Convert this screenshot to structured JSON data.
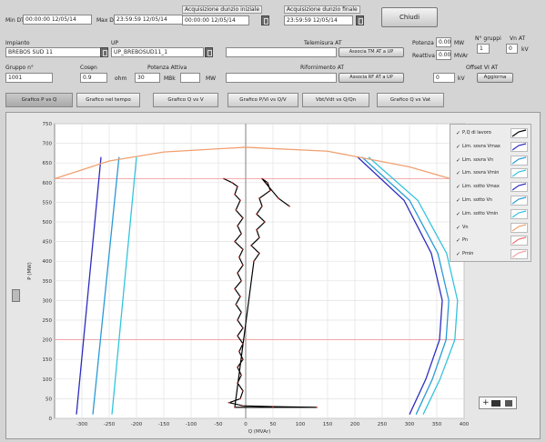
{
  "top": {
    "min_label": "Min DT",
    "min_value": "00:00:00 12/05/14",
    "max_label": "Max DT",
    "max_value": "23:59:59 12/05/14",
    "acq_start_label": "Acquisizione dunzio iniziale",
    "acq_start_value": "00:00:00 12/05/14",
    "acq_end_label": "Acquisizione dunzio finale",
    "acq_end_value": "23:59:59 12/05/14",
    "chiudi_label": "Chiudi"
  },
  "row1": {
    "impianto_label": "Impianto",
    "impianto_value": "BREBOS SUD 11",
    "up_label": "UP",
    "up_value": "UP_BREBOSUD11_1",
    "telemisura_label": "Telemisura AT",
    "telemisura_btn": "Associa TM AT a UP",
    "potenza_label": "Potenza",
    "potenza_value": "0.00",
    "potenza_unit": "MW",
    "reattiva_label": "Reattiva",
    "reattiva_value": "0.00",
    "reattiva_unit": "MVAr",
    "gruppo_n_label": "N° gruppi",
    "gruppo_n_value": "1",
    "vn_label": "Vn AT",
    "vn_value": "0",
    "vn_unit": "kV"
  },
  "row2": {
    "gruppo_label": "Gruppo n°",
    "gruppo_value": "1001",
    "cosphi_label": "Cosφn",
    "cosphi_value": "0.9",
    "potenza_att_label": "Potenza Attiva",
    "potenza_att_value": "30",
    "potenza_att_unit": "MW",
    "mbk_label": "MBk",
    "mbk_value": "",
    "ohm_unit": "ohm",
    "mw_unit": "MW",
    "rifornimento_label": "Rifornimento AT",
    "rifornimento_btn": "Associa RF AT a UP",
    "offset_label": "Offset VI AT",
    "offset_value": "0",
    "offset_unit": "kV",
    "aggiorna_btn": "Aggiorna"
  },
  "tabs": [
    {
      "label": "Grafico P vs Q"
    },
    {
      "label": "Grafico nel tempo"
    },
    {
      "label": "Grafico Q vs V"
    },
    {
      "label": "Grafico P/Vi vs Q/V"
    },
    {
      "label": "Vbt/Vdt vs Q/Qn"
    },
    {
      "label": "Grafico Q vs Vat"
    }
  ],
  "chart_data": {
    "type": "scatter",
    "xlabel": "Q (MVAr)",
    "ylabel": "P (MW)",
    "xlim": [
      -350,
      400
    ],
    "ylim": [
      0,
      750
    ],
    "x_ticks": [
      -300,
      -250,
      -200,
      -150,
      -100,
      -50,
      0,
      50,
      100,
      150,
      200,
      250,
      300,
      350,
      400
    ],
    "y_ticks": [
      0,
      50,
      100,
      150,
      200,
      250,
      300,
      350,
      400,
      450,
      500,
      550,
      600,
      650,
      700,
      750
    ],
    "hlines": [
      610,
      200
    ],
    "series": [
      {
        "name": "P,Q di lavoro",
        "color": "#000000",
        "points": [
          [
            -40,
            610
          ],
          [
            -25,
            600
          ],
          [
            -15,
            590
          ],
          [
            -20,
            570
          ],
          [
            -10,
            555
          ],
          [
            -18,
            530
          ],
          [
            -5,
            510
          ],
          [
            -15,
            490
          ],
          [
            -8,
            470
          ],
          [
            -20,
            450
          ],
          [
            -5,
            430
          ],
          [
            -12,
            410
          ],
          [
            -5,
            390
          ],
          [
            -15,
            370
          ],
          [
            -8,
            350
          ],
          [
            -20,
            330
          ],
          [
            -10,
            310
          ],
          [
            -18,
            290
          ],
          [
            -8,
            270
          ],
          [
            -15,
            250
          ],
          [
            -5,
            230
          ],
          [
            -15,
            210
          ],
          [
            -5,
            190
          ],
          [
            -12,
            170
          ],
          [
            -5,
            150
          ],
          [
            -15,
            130
          ],
          [
            -8,
            110
          ],
          [
            -15,
            90
          ],
          [
            -5,
            70
          ],
          [
            -10,
            50
          ],
          [
            -30,
            40
          ],
          [
            -5,
            32
          ],
          [
            50,
            30
          ],
          [
            130,
            28
          ],
          [
            -20,
            28
          ],
          [
            15,
            400
          ],
          [
            25,
            420
          ],
          [
            10,
            440
          ],
          [
            25,
            460
          ],
          [
            20,
            480
          ],
          [
            35,
            500
          ],
          [
            20,
            520
          ],
          [
            30,
            540
          ],
          [
            25,
            560
          ],
          [
            45,
            580
          ],
          [
            40,
            600
          ],
          [
            30,
            610
          ],
          [
            60,
            560
          ],
          [
            80,
            540
          ]
        ]
      },
      {
        "name": "Lim. sovra Vmax",
        "color": "#2d2dbf",
        "points": [
          [
            -310,
            10
          ],
          [
            -265,
            665
          ]
        ]
      },
      {
        "name": "Lim. sovra Vn",
        "color": "#2a9ad6",
        "points": [
          [
            -280,
            10
          ],
          [
            -232,
            665
          ]
        ]
      },
      {
        "name": "Lim. sovra Vmin",
        "color": "#33c4dd",
        "points": [
          [
            -245,
            10
          ],
          [
            -200,
            665
          ]
        ]
      },
      {
        "name": "Lim. sotto Vmax",
        "color": "#2d2dbf",
        "points": [
          [
            205,
            665
          ],
          [
            290,
            555
          ],
          [
            340,
            420
          ],
          [
            360,
            300
          ],
          [
            355,
            200
          ],
          [
            330,
            100
          ],
          [
            300,
            10
          ]
        ]
      },
      {
        "name": "Lim. sotto Vn",
        "color": "#2a9ad6",
        "points": [
          [
            213,
            665
          ],
          [
            300,
            555
          ],
          [
            352,
            420
          ],
          [
            372,
            300
          ],
          [
            367,
            200
          ],
          [
            342,
            100
          ],
          [
            312,
            10
          ]
        ]
      },
      {
        "name": "Lim. sotto Vmin",
        "color": "#33c4dd",
        "points": [
          [
            225,
            665
          ],
          [
            315,
            555
          ],
          [
            368,
            420
          ],
          [
            388,
            300
          ],
          [
            383,
            200
          ],
          [
            356,
            100
          ],
          [
            325,
            10
          ]
        ]
      },
      {
        "name": "Vn",
        "color": "#f0a070",
        "points": [
          [
            -350,
            610
          ],
          [
            -250,
            655
          ],
          [
            -150,
            678
          ],
          [
            0,
            690
          ],
          [
            150,
            680
          ],
          [
            300,
            640
          ],
          [
            400,
            600
          ]
        ]
      }
    ],
    "legend": [
      {
        "label": "P,Q di lavoro",
        "color": "#000000"
      },
      {
        "label": "Lim. sovra Vmax",
        "color": "#2d2dbf"
      },
      {
        "label": "Lim. sovra Vn",
        "color": "#2a9ad6"
      },
      {
        "label": "Lim. sovra Vmin",
        "color": "#33c4dd"
      },
      {
        "label": "Lim. sotto Vmax",
        "color": "#2d2dbf"
      },
      {
        "label": "Lim. sotto Vn",
        "color": "#2a9ad6"
      },
      {
        "label": "Lim. sotto Vmin",
        "color": "#33c4dd"
      },
      {
        "label": "Vn",
        "color": "#f0a070"
      },
      {
        "label": "Pn",
        "color": "#f07070"
      },
      {
        "label": "Pmin",
        "color": "#f0a0a0"
      }
    ],
    "legend_position": "right"
  }
}
